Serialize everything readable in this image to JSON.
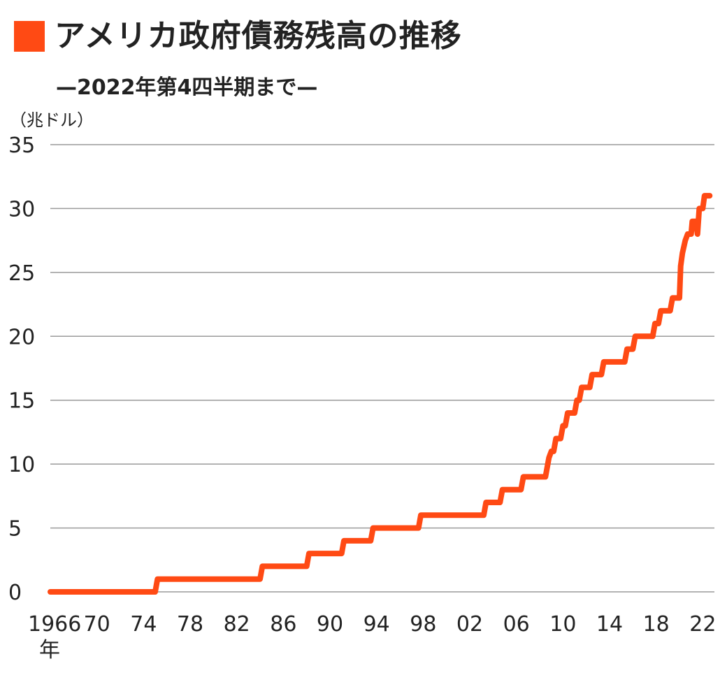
{
  "chart_data": {
    "type": "line",
    "title": "アメリカ政府債務残高の推移",
    "subtitle": "—2022年第4四半期まで—",
    "unit_label": "（兆ドル）",
    "xlabel": "年",
    "ylabel": "兆ドル",
    "ylim": [
      0,
      35
    ],
    "xlim": [
      1966,
      2023
    ],
    "yticks": [
      0,
      5,
      10,
      15,
      20,
      25,
      30,
      35
    ],
    "xticks": [
      {
        "value": 1966,
        "label": "1966"
      },
      {
        "value": 1970,
        "label": "70"
      },
      {
        "value": 1974,
        "label": "74"
      },
      {
        "value": 1978,
        "label": "78"
      },
      {
        "value": 1982,
        "label": "82"
      },
      {
        "value": 1986,
        "label": "86"
      },
      {
        "value": 1990,
        "label": "90"
      },
      {
        "value": 1994,
        "label": "94"
      },
      {
        "value": 1998,
        "label": "98"
      },
      {
        "value": 2002,
        "label": "02"
      },
      {
        "value": 2006,
        "label": "06"
      },
      {
        "value": 2010,
        "label": "10"
      },
      {
        "value": 2014,
        "label": "14"
      },
      {
        "value": 2018,
        "label": "18"
      },
      {
        "value": 2022,
        "label": "22"
      }
    ],
    "grid": true,
    "color": "#ff4a14",
    "series": [
      {
        "name": "アメリカ政府債務残高",
        "points": [
          [
            1966,
            0
          ],
          [
            1975,
            0
          ],
          [
            1975.2,
            1
          ],
          [
            1984,
            1
          ],
          [
            1984.2,
            2
          ],
          [
            1988,
            2
          ],
          [
            1988.2,
            3
          ],
          [
            1991,
            3
          ],
          [
            1991.2,
            4
          ],
          [
            1993.5,
            4
          ],
          [
            1993.7,
            5
          ],
          [
            1997.6,
            5
          ],
          [
            1997.8,
            6
          ],
          [
            2003.2,
            6
          ],
          [
            2003.4,
            7
          ],
          [
            2004.6,
            7
          ],
          [
            2004.8,
            8
          ],
          [
            2006.4,
            8
          ],
          [
            2006.6,
            9
          ],
          [
            2008.5,
            9
          ],
          [
            2008.8,
            10.5
          ],
          [
            2009.0,
            11
          ],
          [
            2009.2,
            11
          ],
          [
            2009.4,
            12
          ],
          [
            2009.8,
            12
          ],
          [
            2010.0,
            13
          ],
          [
            2010.2,
            13
          ],
          [
            2010.4,
            14
          ],
          [
            2011.0,
            14
          ],
          [
            2011.2,
            15
          ],
          [
            2011.4,
            15
          ],
          [
            2011.6,
            16
          ],
          [
            2012.3,
            16
          ],
          [
            2012.5,
            17
          ],
          [
            2013.3,
            17
          ],
          [
            2013.5,
            18
          ],
          [
            2015.3,
            18
          ],
          [
            2015.5,
            19
          ],
          [
            2016.0,
            19
          ],
          [
            2016.2,
            20
          ],
          [
            2017.7,
            20
          ],
          [
            2017.9,
            21
          ],
          [
            2018.2,
            21
          ],
          [
            2018.4,
            22
          ],
          [
            2019.2,
            22
          ],
          [
            2019.4,
            23
          ],
          [
            2020.0,
            23
          ],
          [
            2020.1,
            25.5
          ],
          [
            2020.25,
            26.5
          ],
          [
            2020.5,
            27.5
          ],
          [
            2020.7,
            28
          ],
          [
            2021.0,
            28
          ],
          [
            2021.1,
            29
          ],
          [
            2021.4,
            29
          ],
          [
            2021.55,
            28
          ],
          [
            2021.7,
            30
          ],
          [
            2022.0,
            30
          ],
          [
            2022.15,
            31
          ],
          [
            2022.6,
            31
          ]
        ]
      }
    ]
  }
}
